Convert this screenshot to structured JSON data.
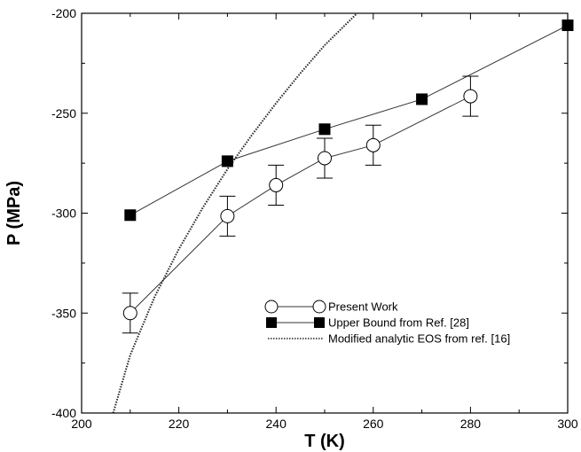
{
  "chart_data": {
    "type": "line",
    "xlabel": "T (K)",
    "ylabel": "P (MPa)",
    "xlim": [
      200,
      300
    ],
    "ylim": [
      -400,
      -200
    ],
    "xticks": [
      200,
      220,
      240,
      260,
      280,
      300
    ],
    "yticks": [
      -400,
      -350,
      -300,
      -250,
      -200
    ],
    "xtick_labels": [
      "200",
      "220",
      "240",
      "260",
      "280",
      "300"
    ],
    "ytick_labels": [
      "-400",
      "-350",
      "-300",
      "-250",
      "-200"
    ],
    "grid": false,
    "legend_position": "bottom-right",
    "series": [
      {
        "name": "Present Work",
        "marker": "open-circle",
        "line": "solid",
        "x": [
          210,
          230,
          240,
          250,
          260,
          280
        ],
        "y": [
          -350,
          -301.5,
          -286,
          -272.5,
          -266,
          -241.5
        ],
        "error": [
          10,
          10,
          10,
          10,
          10,
          10
        ]
      },
      {
        "name": "Upper Bound from Ref. [28]",
        "marker": "filled-square",
        "line": "solid",
        "x": [
          210,
          230,
          250,
          270,
          300
        ],
        "y": [
          -301,
          -274,
          -258,
          -243,
          -206
        ]
      },
      {
        "name": "Modified analytic EOS from ref. [16]",
        "marker": "none",
        "line": "dotted",
        "x": [
          206.5,
          210,
          215,
          220,
          225,
          230,
          235,
          240,
          245,
          250,
          255,
          260,
          265
        ],
        "y": [
          -400,
          -371,
          -342,
          -318,
          -297,
          -278,
          -261,
          -245,
          -230,
          -216,
          -204,
          -192,
          -180
        ]
      }
    ]
  }
}
